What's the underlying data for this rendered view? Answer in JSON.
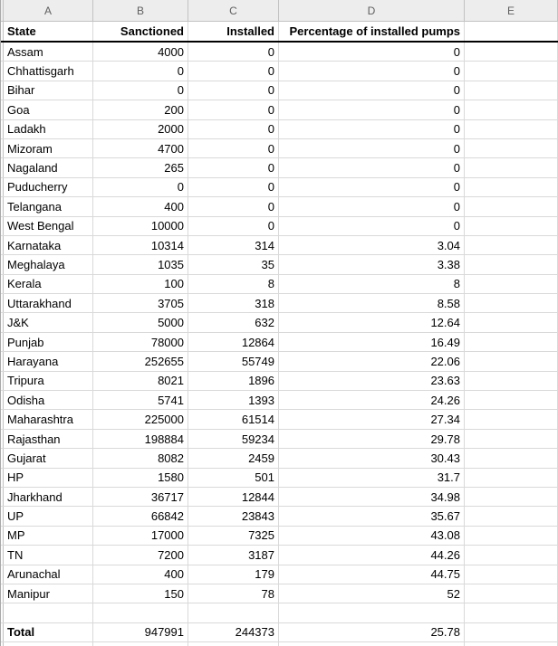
{
  "sheet": {
    "column_letters": [
      "A",
      "B",
      "C",
      "D",
      "E"
    ],
    "header_row": {
      "state": "State",
      "sanctioned": "Sanctioned",
      "installed": "Installed",
      "percentage": "Percentage of installed pumps"
    },
    "rows": [
      {
        "state": "Assam",
        "sanctioned": "4000",
        "installed": "0",
        "percentage": "0"
      },
      {
        "state": "Chhattisgarh",
        "sanctioned": "0",
        "installed": "0",
        "percentage": "0"
      },
      {
        "state": "Bihar",
        "sanctioned": "0",
        "installed": "0",
        "percentage": "0"
      },
      {
        "state": "Goa",
        "sanctioned": "200",
        "installed": "0",
        "percentage": "0"
      },
      {
        "state": "Ladakh",
        "sanctioned": "2000",
        "installed": "0",
        "percentage": "0"
      },
      {
        "state": "Mizoram",
        "sanctioned": "4700",
        "installed": "0",
        "percentage": "0"
      },
      {
        "state": "Nagaland",
        "sanctioned": "265",
        "installed": "0",
        "percentage": "0"
      },
      {
        "state": "Puducherry",
        "sanctioned": "0",
        "installed": "0",
        "percentage": "0"
      },
      {
        "state": "Telangana",
        "sanctioned": "400",
        "installed": "0",
        "percentage": "0"
      },
      {
        "state": "West Bengal",
        "sanctioned": "10000",
        "installed": "0",
        "percentage": "0"
      },
      {
        "state": "Karnataka",
        "sanctioned": "10314",
        "installed": "314",
        "percentage": "3.04"
      },
      {
        "state": "Meghalaya",
        "sanctioned": "1035",
        "installed": "35",
        "percentage": "3.38"
      },
      {
        "state": "Kerala",
        "sanctioned": "100",
        "installed": "8",
        "percentage": "8"
      },
      {
        "state": "Uttarakhand",
        "sanctioned": "3705",
        "installed": "318",
        "percentage": "8.58"
      },
      {
        "state": "J&K",
        "sanctioned": "5000",
        "installed": "632",
        "percentage": "12.64"
      },
      {
        "state": "Punjab",
        "sanctioned": "78000",
        "installed": "12864",
        "percentage": "16.49"
      },
      {
        "state": "Harayana",
        "sanctioned": "252655",
        "installed": "55749",
        "percentage": "22.06"
      },
      {
        "state": "Tripura",
        "sanctioned": "8021",
        "installed": "1896",
        "percentage": "23.63"
      },
      {
        "state": "Odisha",
        "sanctioned": "5741",
        "installed": "1393",
        "percentage": "24.26"
      },
      {
        "state": "Maharashtra",
        "sanctioned": "225000",
        "installed": "61514",
        "percentage": "27.34"
      },
      {
        "state": "Rajasthan",
        "sanctioned": "198884",
        "installed": "59234",
        "percentage": "29.78"
      },
      {
        "state": "Gujarat",
        "sanctioned": "8082",
        "installed": "2459",
        "percentage": "30.43"
      },
      {
        "state": "HP",
        "sanctioned": "1580",
        "installed": "501",
        "percentage": "31.7"
      },
      {
        "state": "Jharkhand",
        "sanctioned": "36717",
        "installed": "12844",
        "percentage": "34.98"
      },
      {
        "state": "UP",
        "sanctioned": "66842",
        "installed": "23843",
        "percentage": "35.67"
      },
      {
        "state": "MP",
        "sanctioned": "17000",
        "installed": "7325",
        "percentage": "43.08"
      },
      {
        "state": "TN",
        "sanctioned": "7200",
        "installed": "3187",
        "percentage": "44.26"
      },
      {
        "state": "Arunachal",
        "sanctioned": "400",
        "installed": "179",
        "percentage": "44.75"
      },
      {
        "state": "Manipur",
        "sanctioned": "150",
        "installed": "78",
        "percentage": "52"
      }
    ],
    "total_row": {
      "label": "Total",
      "sanctioned": "947991",
      "installed": "244373",
      "percentage": "25.78"
    },
    "colors": {
      "grid_line": "#d9d9d9",
      "strip_background": "#ededed",
      "strip_text": "#5f5f5f",
      "strip_border": "#c2c2c2",
      "header_underline": "#000000",
      "cell_text": "#000000",
      "cell_background": "#ffffff"
    }
  }
}
